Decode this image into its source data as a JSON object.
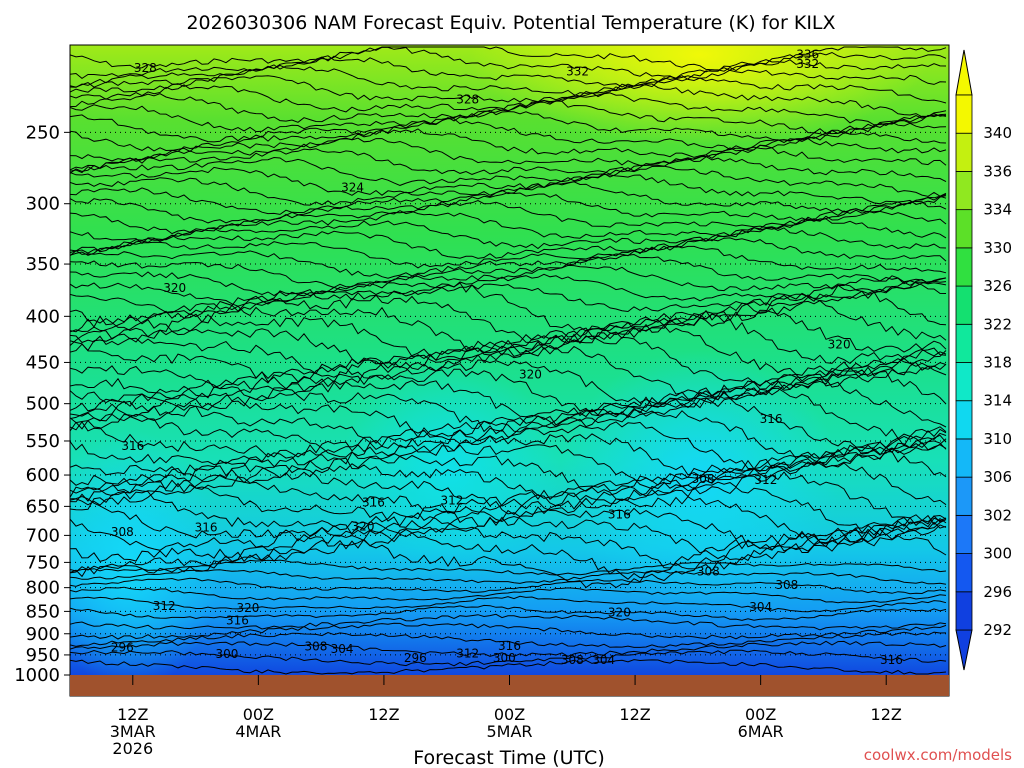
{
  "chart_data": {
    "type": "heatmap",
    "title": "2026030306 NAM Forecast Equiv. Potential Temperature (K) for KILX",
    "xlabel": "Forecast Time (UTC)",
    "ylabel": "",
    "y_scale": "log-pressure",
    "y_inverted": true,
    "ylim": [
      1000,
      200
    ],
    "y_ticks": [
      250,
      300,
      350,
      400,
      450,
      500,
      550,
      600,
      650,
      700,
      750,
      800,
      850,
      900,
      950,
      1000
    ],
    "x_ticks": [
      {
        "line1": "12Z",
        "line2": "3MAR",
        "line3": "2026",
        "hour": 6
      },
      {
        "line1": "00Z",
        "line2": "4MAR",
        "line3": "",
        "hour": 18
      },
      {
        "line1": "12Z",
        "line2": "",
        "line3": "",
        "hour": 30
      },
      {
        "line1": "00Z",
        "line2": "5MAR",
        "line3": "",
        "hour": 42
      },
      {
        "line1": "12Z",
        "line2": "",
        "line3": "",
        "hour": 54
      },
      {
        "line1": "00Z",
        "line2": "6MAR",
        "line3": "",
        "hour": 66
      },
      {
        "line1": "12Z",
        "line2": "",
        "line3": "",
        "hour": 78
      }
    ],
    "xlim": [
      0,
      84
    ],
    "grid": true,
    "colorbar": {
      "labels": [
        "292",
        "296",
        "300",
        "302",
        "306",
        "310",
        "314",
        "318",
        "322",
        "326",
        "330",
        "334",
        "336",
        "340"
      ],
      "colors": [
        "#1040e0",
        "#1458f0",
        "#1c78f8",
        "#1c98f8",
        "#14b8f8",
        "#10d8f0",
        "#10e8c8",
        "#10e89c",
        "#14e070",
        "#30e040",
        "#5ce028",
        "#90e820",
        "#c4f010",
        "#f4f800"
      ]
    },
    "contour_labels": [
      {
        "text": "328",
        "x": 7.2,
        "p": 212
      },
      {
        "text": "332",
        "x": 48.5,
        "p": 214
      },
      {
        "text": "336",
        "x": 70.5,
        "p": 205
      },
      {
        "text": "332",
        "x": 70.5,
        "p": 210
      },
      {
        "text": "328",
        "x": 38,
        "p": 230
      },
      {
        "text": "324",
        "x": 27,
        "p": 288
      },
      {
        "text": "320",
        "x": 10,
        "p": 372
      },
      {
        "text": "320",
        "x": 44,
        "p": 464
      },
      {
        "text": "320",
        "x": 73.5,
        "p": 430
      },
      {
        "text": "316",
        "x": 67,
        "p": 520
      },
      {
        "text": "316",
        "x": 6,
        "p": 557
      },
      {
        "text": "308",
        "x": 60.5,
        "p": 606
      },
      {
        "text": "312",
        "x": 66.5,
        "p": 608
      },
      {
        "text": "312",
        "x": 36.5,
        "p": 640
      },
      {
        "text": "316",
        "x": 29,
        "p": 644
      },
      {
        "text": "320",
        "x": 28,
        "p": 684
      },
      {
        "text": "316",
        "x": 13,
        "p": 686
      },
      {
        "text": "316",
        "x": 52.5,
        "p": 664
      },
      {
        "text": "308",
        "x": 5,
        "p": 694
      },
      {
        "text": "308",
        "x": 61,
        "p": 768
      },
      {
        "text": "308",
        "x": 68.5,
        "p": 795
      },
      {
        "text": "312",
        "x": 9,
        "p": 838
      },
      {
        "text": "320",
        "x": 17,
        "p": 843
      },
      {
        "text": "304",
        "x": 66,
        "p": 840
      },
      {
        "text": "320",
        "x": 52.5,
        "p": 852
      },
      {
        "text": "316",
        "x": 16,
        "p": 870
      },
      {
        "text": "296",
        "x": 5,
        "p": 932
      },
      {
        "text": "308",
        "x": 23.5,
        "p": 930
      },
      {
        "text": "304",
        "x": 26,
        "p": 936
      },
      {
        "text": "316",
        "x": 42,
        "p": 928
      },
      {
        "text": "300",
        "x": 15,
        "p": 948
      },
      {
        "text": "312",
        "x": 38,
        "p": 946
      },
      {
        "text": "296",
        "x": 33,
        "p": 957
      },
      {
        "text": "300",
        "x": 41.5,
        "p": 958
      },
      {
        "text": "308",
        "x": 48,
        "p": 962
      },
      {
        "text": "304",
        "x": 51,
        "p": 963
      },
      {
        "text": "316",
        "x": 78.5,
        "p": 962
      }
    ]
  },
  "credit": "coolwx.com/models"
}
